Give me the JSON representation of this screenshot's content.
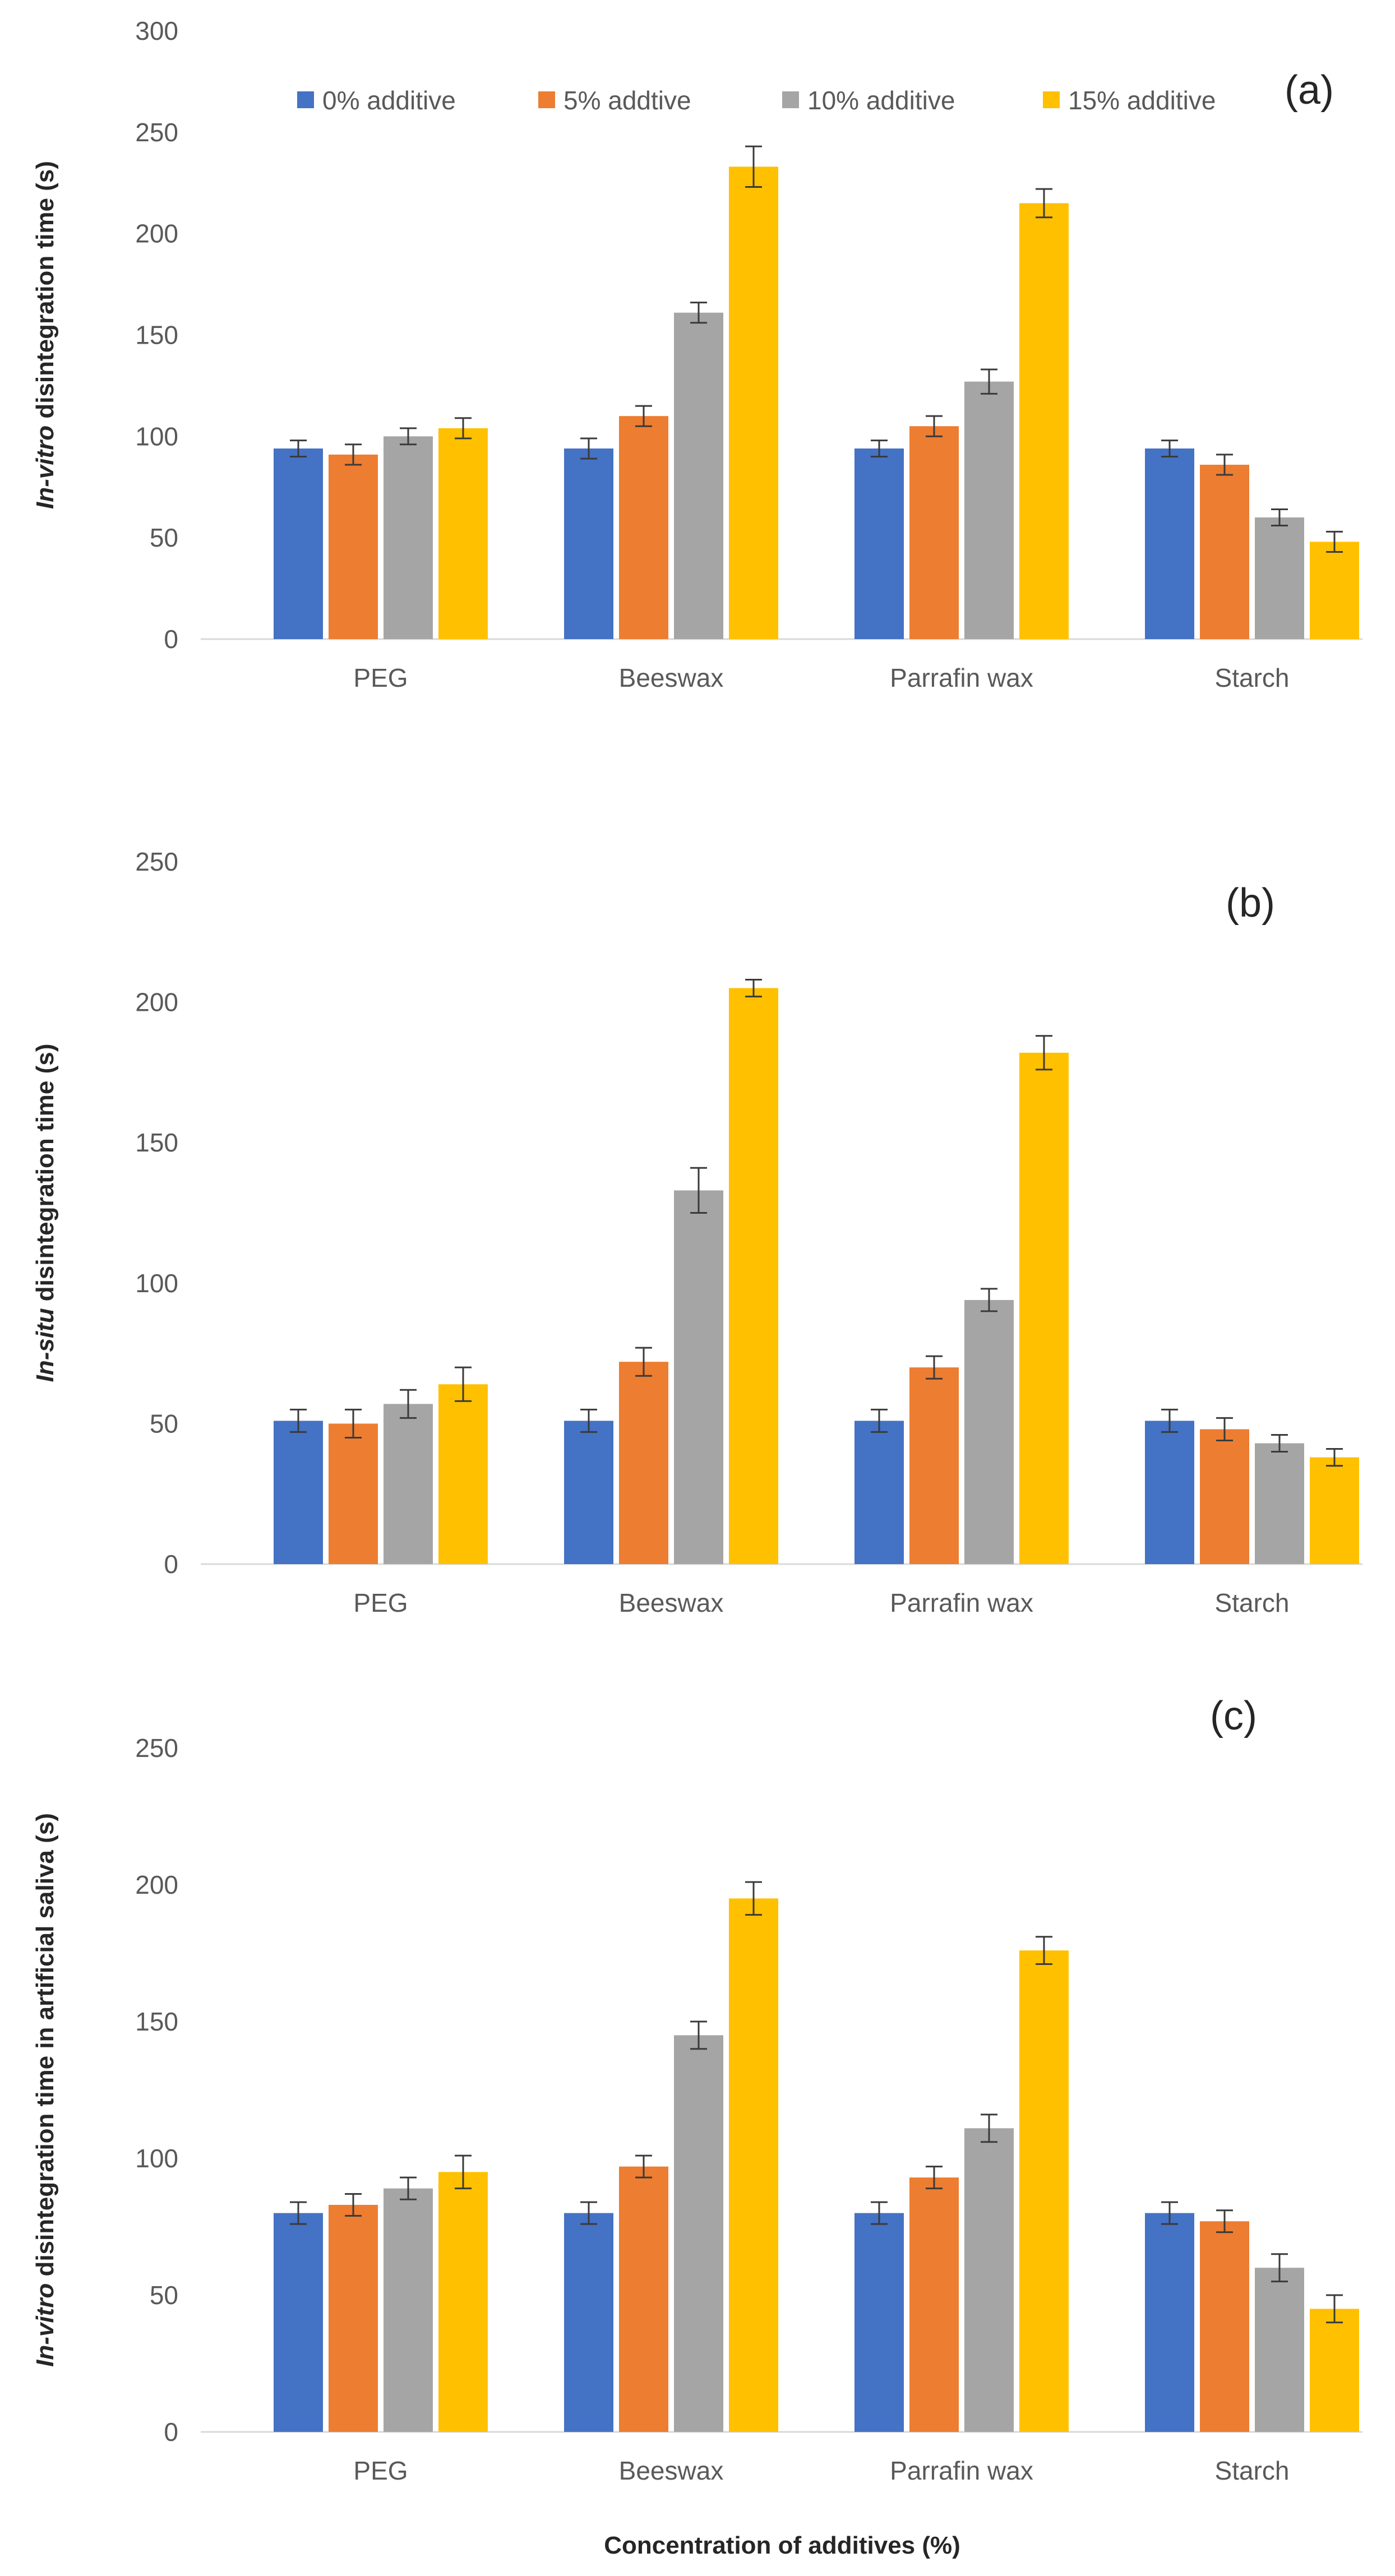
{
  "chart_data": [
    {
      "type": "bar",
      "panel_label": "(a)",
      "ylabel_italic": "In-vitro",
      "ylabel_rest": " disintegration time (s)",
      "categories": [
        "PEG",
        "Beeswax",
        "Parrafin wax",
        "Starch"
      ],
      "ylim": [
        0,
        300
      ],
      "yticks": [
        0,
        50,
        100,
        150,
        200,
        250,
        300
      ],
      "legend": {
        "position": "top"
      },
      "series": [
        {
          "name": "0% additive",
          "values": [
            94,
            94,
            94,
            94
          ],
          "errors": [
            4,
            5,
            4,
            4
          ]
        },
        {
          "name": "5% addtive",
          "values": [
            91,
            110,
            105,
            86
          ],
          "errors": [
            5,
            5,
            5,
            5
          ]
        },
        {
          "name": "10% additive",
          "values": [
            100,
            161,
            127,
            60
          ],
          "errors": [
            4,
            5,
            6,
            4
          ]
        },
        {
          "name": "15% additive",
          "values": [
            104,
            233,
            215,
            48
          ],
          "errors": [
            5,
            10,
            7,
            5
          ]
        }
      ]
    },
    {
      "type": "bar",
      "panel_label": "(b)",
      "ylabel_italic": "In-situ",
      "ylabel_rest": " disintegration time (s)",
      "categories": [
        "PEG",
        "Beeswax",
        "Parrafin wax",
        "Starch"
      ],
      "ylim": [
        0,
        250
      ],
      "yticks": [
        0,
        50,
        100,
        150,
        200,
        250
      ],
      "series": [
        {
          "name": "0% additive",
          "values": [
            51,
            51,
            51,
            51
          ],
          "errors": [
            4,
            4,
            4,
            4
          ]
        },
        {
          "name": "5% addtive",
          "values": [
            50,
            72,
            70,
            48
          ],
          "errors": [
            5,
            5,
            4,
            4
          ]
        },
        {
          "name": "10% additive",
          "values": [
            57,
            133,
            94,
            43
          ],
          "errors": [
            5,
            8,
            4,
            3
          ]
        },
        {
          "name": "15% additive",
          "values": [
            64,
            205,
            182,
            38
          ],
          "errors": [
            6,
            3,
            6,
            3
          ]
        }
      ]
    },
    {
      "type": "bar",
      "panel_label": "(c)",
      "ylabel_italic": "In-vitro",
      "ylabel_rest": " disintegration time in artificial saliva (s)",
      "xlabel": "Concentration of additives (%)",
      "categories": [
        "PEG",
        "Beeswax",
        "Parrafin wax",
        "Starch"
      ],
      "ylim": [
        0,
        250
      ],
      "yticks": [
        0,
        50,
        100,
        150,
        200,
        250
      ],
      "series": [
        {
          "name": "0% additive",
          "values": [
            80,
            80,
            80,
            80
          ],
          "errors": [
            4,
            4,
            4,
            4
          ]
        },
        {
          "name": "5% addtive",
          "values": [
            83,
            97,
            93,
            77
          ],
          "errors": [
            4,
            4,
            4,
            4
          ]
        },
        {
          "name": "10% additive",
          "values": [
            89,
            145,
            111,
            60
          ],
          "errors": [
            4,
            5,
            5,
            5
          ]
        },
        {
          "name": "15% additive",
          "values": [
            95,
            195,
            176,
            45
          ],
          "errors": [
            6,
            6,
            5,
            5
          ]
        }
      ]
    }
  ],
  "colors": [
    "#4472c4",
    "#ed7d31",
    "#a5a5a5",
    "#ffc000"
  ]
}
